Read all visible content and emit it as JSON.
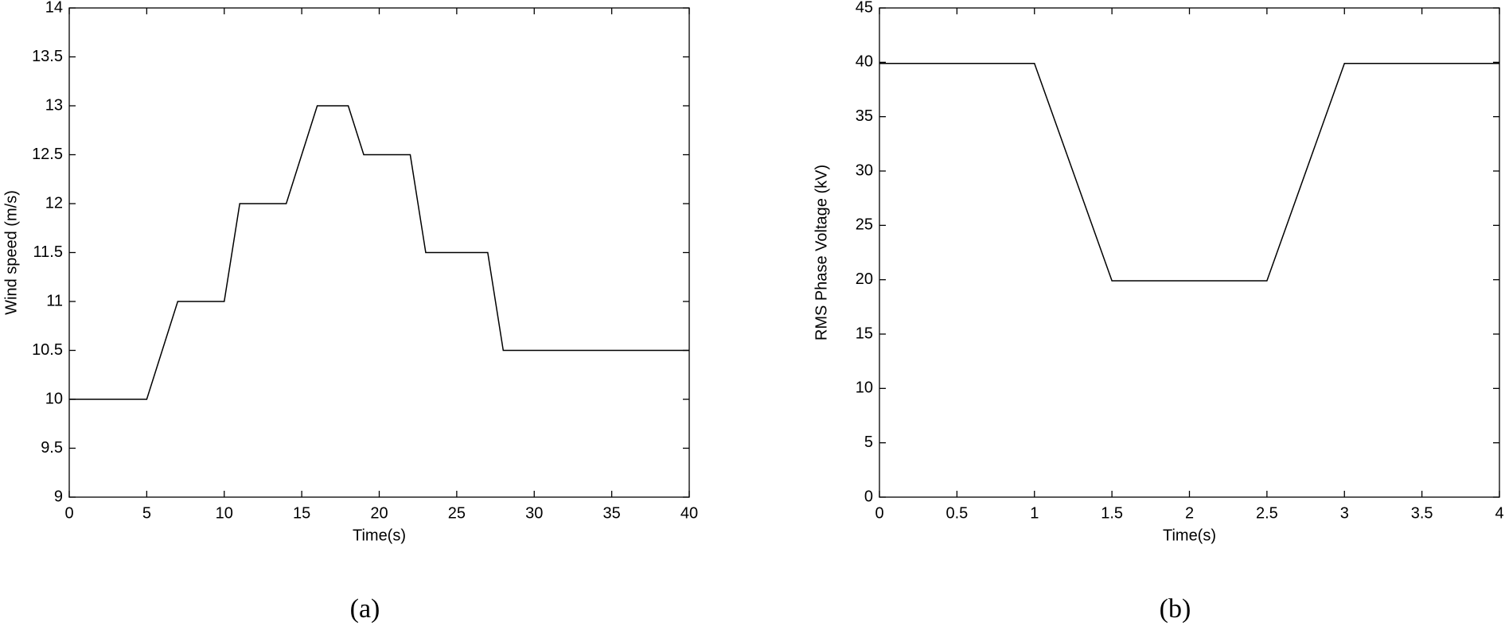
{
  "chart_data": [
    {
      "type": "line",
      "xlabel": "Time(s)",
      "ylabel": "Wind speed (m/s)",
      "caption": "(a)",
      "x": [
        0,
        5,
        7,
        10,
        11,
        14,
        16,
        18,
        19,
        22,
        23,
        27,
        28,
        40
      ],
      "series": [
        {
          "color": "#000000",
          "values": [
            10,
            10,
            11,
            11,
            12,
            12,
            13,
            13,
            12.5,
            12.5,
            11.5,
            11.5,
            10.5,
            10.5
          ]
        }
      ],
      "xlim": [
        0,
        40
      ],
      "xticks": [
        0,
        5,
        10,
        15,
        20,
        25,
        30,
        35,
        40
      ],
      "ylim": [
        9,
        14
      ],
      "yticks": [
        9,
        9.5,
        10,
        10.5,
        11,
        11.5,
        12,
        12.5,
        13,
        13.5,
        14
      ],
      "grid": false
    },
    {
      "type": "line",
      "xlabel": "Time(s)",
      "ylabel": "RMS Phase Voltage (kV)",
      "caption": "(b)",
      "x": [
        0,
        1,
        1.5,
        2.5,
        3,
        4
      ],
      "series": [
        {
          "color": "#000000",
          "values": [
            39.9,
            39.9,
            19.9,
            19.9,
            39.9,
            39.9
          ]
        }
      ],
      "xlim": [
        0,
        4
      ],
      "xticks": [
        0,
        0.5,
        1,
        1.5,
        2,
        2.5,
        3,
        3.5,
        4
      ],
      "ylim": [
        0,
        45
      ],
      "yticks": [
        0,
        5,
        10,
        15,
        20,
        25,
        30,
        35,
        40,
        45
      ],
      "grid": false
    }
  ]
}
